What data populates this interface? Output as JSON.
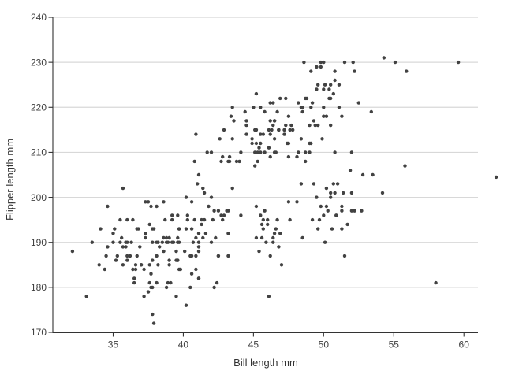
{
  "chart_data": {
    "type": "scatter",
    "title": "",
    "xlabel": "Bill length mm",
    "ylabel": "Flipper length mm",
    "xlim": [
      30.7,
      61.0
    ],
    "ylim": [
      170,
      240
    ],
    "x_ticks": [
      35,
      40,
      45,
      50,
      55,
      60
    ],
    "y_ticks": [
      170,
      180,
      190,
      200,
      210,
      220,
      230,
      240
    ],
    "grid": "horizontal-only",
    "legend": "none",
    "colors": {
      "point": "#424242",
      "grid": "#d8d8d8",
      "axis": "#333333",
      "tick_label": "#404040",
      "background": "#ffffff"
    },
    "point_radius": 2.2,
    "points": [
      [
        39.1,
        181
      ],
      [
        39.5,
        186
      ],
      [
        40.3,
        195
      ],
      [
        36.7,
        193
      ],
      [
        39.3,
        190
      ],
      [
        38.9,
        181
      ],
      [
        39.2,
        195
      ],
      [
        34.1,
        193
      ],
      [
        42.0,
        190
      ],
      [
        37.8,
        186
      ],
      [
        37.8,
        180
      ],
      [
        41.1,
        182
      ],
      [
        38.6,
        191
      ],
      [
        34.6,
        198
      ],
      [
        36.6,
        185
      ],
      [
        38.7,
        195
      ],
      [
        42.5,
        197
      ],
      [
        34.4,
        184
      ],
      [
        46.0,
        194
      ],
      [
        37.8,
        174
      ],
      [
        37.7,
        180
      ],
      [
        35.9,
        189
      ],
      [
        38.2,
        185
      ],
      [
        38.8,
        180
      ],
      [
        35.3,
        187
      ],
      [
        40.6,
        183
      ],
      [
        40.5,
        187
      ],
      [
        37.9,
        172
      ],
      [
        40.5,
        180
      ],
      [
        39.5,
        178
      ],
      [
        37.2,
        178
      ],
      [
        39.5,
        188
      ],
      [
        40.9,
        184
      ],
      [
        36.4,
        195
      ],
      [
        39.2,
        196
      ],
      [
        38.8,
        190
      ],
      [
        42.2,
        180
      ],
      [
        37.6,
        181
      ],
      [
        39.8,
        184
      ],
      [
        36.5,
        182
      ],
      [
        40.8,
        195
      ],
      [
        36.0,
        186
      ],
      [
        44.1,
        196
      ],
      [
        37.0,
        185
      ],
      [
        39.6,
        190
      ],
      [
        41.1,
        182
      ],
      [
        37.5,
        179
      ],
      [
        36.0,
        190
      ],
      [
        42.3,
        191
      ],
      [
        39.6,
        186
      ],
      [
        40.1,
        188
      ],
      [
        35.0,
        190
      ],
      [
        42.0,
        200
      ],
      [
        34.5,
        187
      ],
      [
        41.4,
        191
      ],
      [
        39.0,
        186
      ],
      [
        40.6,
        193
      ],
      [
        36.5,
        181
      ],
      [
        37.6,
        194
      ],
      [
        35.7,
        185
      ],
      [
        41.3,
        195
      ],
      [
        37.6,
        185
      ],
      [
        41.1,
        192
      ],
      [
        36.4,
        184
      ],
      [
        41.6,
        192
      ],
      [
        35.5,
        195
      ],
      [
        41.1,
        188
      ],
      [
        35.9,
        190
      ],
      [
        41.8,
        198
      ],
      [
        33.5,
        190
      ],
      [
        39.7,
        190
      ],
      [
        39.6,
        196
      ],
      [
        45.8,
        197
      ],
      [
        35.5,
        190
      ],
      [
        42.8,
        195
      ],
      [
        40.9,
        191
      ],
      [
        37.2,
        184
      ],
      [
        36.2,
        187
      ],
      [
        42.1,
        195
      ],
      [
        34.6,
        189
      ],
      [
        42.9,
        196
      ],
      [
        36.7,
        187
      ],
      [
        35.1,
        193
      ],
      [
        37.3,
        191
      ],
      [
        41.3,
        194
      ],
      [
        36.3,
        190
      ],
      [
        36.9,
        189
      ],
      [
        38.3,
        189
      ],
      [
        38.9,
        190
      ],
      [
        35.7,
        202
      ],
      [
        41.1,
        205
      ],
      [
        34.0,
        185
      ],
      [
        39.6,
        186
      ],
      [
        36.2,
        187
      ],
      [
        40.8,
        208
      ],
      [
        38.1,
        190
      ],
      [
        40.3,
        196
      ],
      [
        33.1,
        178
      ],
      [
        43.2,
        192
      ],
      [
        35.0,
        192
      ],
      [
        41.0,
        203
      ],
      [
        37.7,
        183
      ],
      [
        37.8,
        190
      ],
      [
        37.9,
        193
      ],
      [
        39.7,
        184
      ],
      [
        38.6,
        199
      ],
      [
        38.2,
        190
      ],
      [
        38.1,
        181
      ],
      [
        43.2,
        197
      ],
      [
        38.1,
        198
      ],
      [
        45.6,
        191
      ],
      [
        39.7,
        193
      ],
      [
        42.2,
        197
      ],
      [
        39.6,
        191
      ],
      [
        42.7,
        196
      ],
      [
        38.6,
        188
      ],
      [
        37.3,
        199
      ],
      [
        35.7,
        189
      ],
      [
        41.1,
        189
      ],
      [
        36.2,
        187
      ],
      [
        37.7,
        198
      ],
      [
        40.2,
        176
      ],
      [
        41.4,
        202
      ],
      [
        35.2,
        186
      ],
      [
        40.6,
        199
      ],
      [
        38.8,
        191
      ],
      [
        41.5,
        195
      ],
      [
        39.0,
        191
      ],
      [
        44.1,
        210
      ],
      [
        38.5,
        190
      ],
      [
        43.1,
        197
      ],
      [
        36.8,
        193
      ],
      [
        37.5,
        199
      ],
      [
        38.1,
        187
      ],
      [
        41.1,
        190
      ],
      [
        35.6,
        191
      ],
      [
        40.2,
        200
      ],
      [
        37.0,
        185
      ],
      [
        39.7,
        193
      ],
      [
        40.2,
        193
      ],
      [
        40.6,
        187
      ],
      [
        32.1,
        188
      ],
      [
        40.7,
        190
      ],
      [
        37.3,
        192
      ],
      [
        39.0,
        185
      ],
      [
        39.2,
        190
      ],
      [
        36.6,
        184
      ],
      [
        36.0,
        195
      ],
      [
        37.8,
        193
      ],
      [
        36.0,
        187
      ],
      [
        41.5,
        201
      ],
      [
        46.1,
        211
      ],
      [
        50.0,
        230
      ],
      [
        48.7,
        210
      ],
      [
        50.0,
        218
      ],
      [
        47.6,
        215
      ],
      [
        46.5,
        210
      ],
      [
        45.4,
        211
      ],
      [
        46.7,
        219
      ],
      [
        43.3,
        209
      ],
      [
        46.8,
        215
      ],
      [
        40.9,
        214
      ],
      [
        49.0,
        216
      ],
      [
        45.5,
        214
      ],
      [
        48.4,
        213
      ],
      [
        45.8,
        210
      ],
      [
        49.3,
        217
      ],
      [
        42.0,
        210
      ],
      [
        49.2,
        221
      ],
      [
        46.2,
        209
      ],
      [
        48.7,
        222
      ],
      [
        50.2,
        218
      ],
      [
        45.1,
        215
      ],
      [
        46.5,
        213
      ],
      [
        46.3,
        215
      ],
      [
        42.9,
        215
      ],
      [
        46.1,
        215
      ],
      [
        44.5,
        216
      ],
      [
        47.8,
        215
      ],
      [
        48.2,
        210
      ],
      [
        50.0,
        220
      ],
      [
        47.3,
        222
      ],
      [
        42.8,
        209
      ],
      [
        45.1,
        207
      ],
      [
        59.6,
        230
      ],
      [
        49.1,
        220
      ],
      [
        48.4,
        220
      ],
      [
        42.6,
        213
      ],
      [
        44.4,
        219
      ],
      [
        44.0,
        208
      ],
      [
        48.7,
        208
      ],
      [
        42.7,
        208
      ],
      [
        49.6,
        225
      ],
      [
        45.3,
        210
      ],
      [
        49.6,
        216
      ],
      [
        50.5,
        222
      ],
      [
        43.6,
        217
      ],
      [
        45.5,
        210
      ],
      [
        50.5,
        225
      ],
      [
        44.9,
        213
      ],
      [
        45.2,
        215
      ],
      [
        46.6,
        210
      ],
      [
        48.5,
        220
      ],
      [
        45.1,
        210
      ],
      [
        50.1,
        225
      ],
      [
        46.5,
        217
      ],
      [
        45.0,
        220
      ],
      [
        43.8,
        208
      ],
      [
        45.5,
        220
      ],
      [
        43.2,
        208
      ],
      [
        50.4,
        224
      ],
      [
        45.3,
        208
      ],
      [
        46.2,
        221
      ],
      [
        45.7,
        214
      ],
      [
        54.3,
        231
      ],
      [
        45.8,
        219
      ],
      [
        49.8,
        230
      ],
      [
        46.2,
        214
      ],
      [
        49.5,
        229
      ],
      [
        43.5,
        220
      ],
      [
        50.7,
        223
      ],
      [
        47.7,
        216
      ],
      [
        46.4,
        221
      ],
      [
        48.2,
        221
      ],
      [
        46.5,
        217
      ],
      [
        46.4,
        216
      ],
      [
        48.6,
        230
      ],
      [
        47.5,
        209
      ],
      [
        51.1,
        220
      ],
      [
        45.2,
        215
      ],
      [
        45.2,
        223
      ],
      [
        49.1,
        212
      ],
      [
        52.5,
        221
      ],
      [
        47.4,
        212
      ],
      [
        50.0,
        224
      ],
      [
        44.9,
        212
      ],
      [
        50.8,
        228
      ],
      [
        43.4,
        218
      ],
      [
        51.3,
        218
      ],
      [
        47.5,
        212
      ],
      [
        52.1,
        230
      ],
      [
        47.5,
        218
      ],
      [
        52.2,
        228
      ],
      [
        45.5,
        212
      ],
      [
        49.5,
        224
      ],
      [
        44.5,
        214
      ],
      [
        50.8,
        226
      ],
      [
        49.4,
        216
      ],
      [
        46.9,
        222
      ],
      [
        48.4,
        203
      ],
      [
        51.1,
        225
      ],
      [
        48.5,
        219
      ],
      [
        55.9,
        228
      ],
      [
        47.2,
        215
      ],
      [
        49.1,
        228
      ],
      [
        47.3,
        216
      ],
      [
        46.8,
        215
      ],
      [
        41.7,
        210
      ],
      [
        53.4,
        219
      ],
      [
        43.3,
        208
      ],
      [
        48.1,
        209
      ],
      [
        50.5,
        216
      ],
      [
        49.8,
        229
      ],
      [
        43.5,
        213
      ],
      [
        51.5,
        230
      ],
      [
        46.2,
        217
      ],
      [
        55.1,
        230
      ],
      [
        44.5,
        217
      ],
      [
        48.8,
        222
      ],
      [
        47.2,
        214
      ],
      [
        46.8,
        215
      ],
      [
        50.4,
        222
      ],
      [
        45.2,
        212
      ],
      [
        49.9,
        213
      ],
      [
        46.5,
        192
      ],
      [
        50.0,
        196
      ],
      [
        51.3,
        193
      ],
      [
        45.4,
        188
      ],
      [
        52.7,
        197
      ],
      [
        45.2,
        198
      ],
      [
        46.1,
        178
      ],
      [
        51.3,
        197
      ],
      [
        46.0,
        195
      ],
      [
        51.3,
        198
      ],
      [
        46.6,
        193
      ],
      [
        51.7,
        194
      ],
      [
        47.0,
        185
      ],
      [
        52.0,
        201
      ],
      [
        45.9,
        190
      ],
      [
        50.5,
        201
      ],
      [
        50.3,
        197
      ],
      [
        58.0,
        181
      ],
      [
        46.4,
        190
      ],
      [
        49.2,
        195
      ],
      [
        42.4,
        181
      ],
      [
        48.5,
        191
      ],
      [
        43.2,
        187
      ],
      [
        50.6,
        193
      ],
      [
        46.7,
        195
      ],
      [
        52.0,
        197
      ],
      [
        50.5,
        200
      ],
      [
        49.5,
        200
      ],
      [
        46.4,
        191
      ],
      [
        52.8,
        205
      ],
      [
        40.9,
        187
      ],
      [
        54.2,
        201
      ],
      [
        42.5,
        187
      ],
      [
        51.0,
        203
      ],
      [
        49.7,
        195
      ],
      [
        47.5,
        199
      ],
      [
        47.6,
        195
      ],
      [
        52.0,
        210
      ],
      [
        46.9,
        192
      ],
      [
        53.5,
        205
      ],
      [
        49.0,
        210
      ],
      [
        46.2,
        187
      ],
      [
        50.9,
        196
      ],
      [
        45.5,
        196
      ],
      [
        50.9,
        196
      ],
      [
        50.8,
        201
      ],
      [
        50.1,
        190
      ],
      [
        49.0,
        212
      ],
      [
        51.5,
        187
      ],
      [
        49.8,
        198
      ],
      [
        48.1,
        199
      ],
      [
        51.4,
        201
      ],
      [
        45.7,
        193
      ],
      [
        50.7,
        203
      ],
      [
        42.5,
        187
      ],
      [
        52.2,
        197
      ],
      [
        45.2,
        191
      ],
      [
        49.3,
        203
      ],
      [
        50.2,
        202
      ],
      [
        45.6,
        194
      ],
      [
        51.9,
        206
      ],
      [
        46.8,
        189
      ],
      [
        45.7,
        195
      ],
      [
        55.8,
        207
      ],
      [
        43.5,
        202
      ],
      [
        49.6,
        193
      ],
      [
        50.8,
        210
      ],
      [
        50.2,
        198
      ],
      [
        62.3,
        204.5
      ]
    ]
  }
}
